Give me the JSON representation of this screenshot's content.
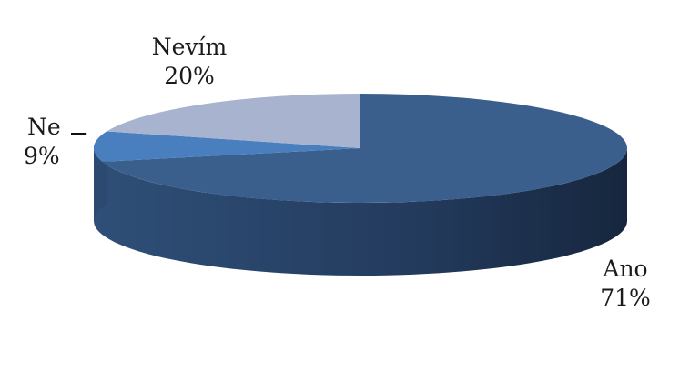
{
  "chart_data": {
    "type": "pie",
    "title": "",
    "categories": [
      "Ano",
      "Ne",
      "Nevím"
    ],
    "values": [
      71,
      9,
      20
    ],
    "labels": [
      "71%",
      "9%",
      "20%"
    ],
    "colors": {
      "Ano": "#3a5f8c",
      "Ne": "#4a7fbf",
      "Nevím": "#a7b3cf"
    },
    "legend": "none",
    "style": "3d-pie"
  }
}
